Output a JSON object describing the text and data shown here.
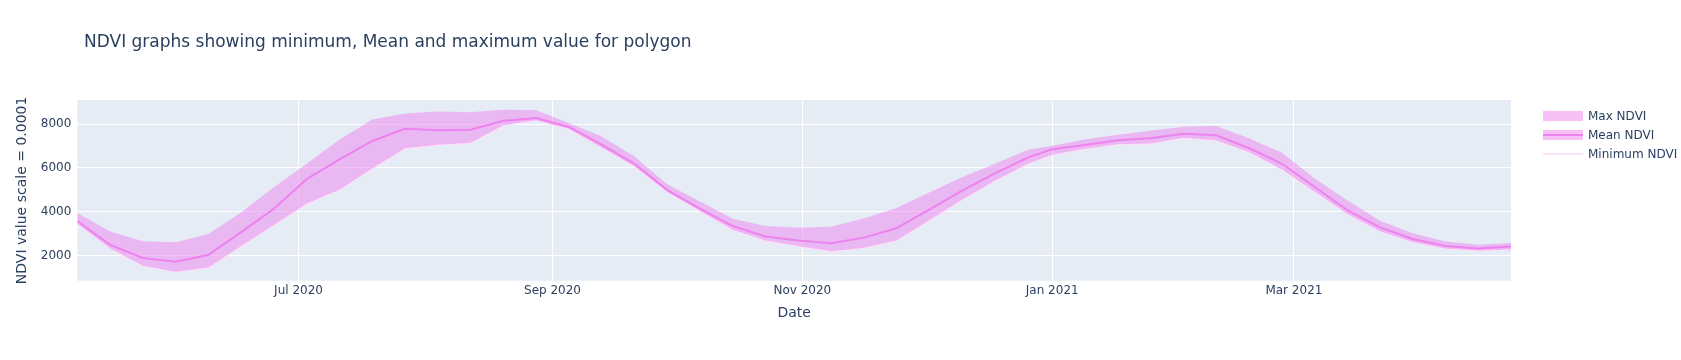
{
  "chart_data": {
    "type": "line",
    "title": "NDVI graphs showing minimum, Mean and maximum value for polygon",
    "xlabel": "Date",
    "ylabel": "NDVI value scale = 0.0001",
    "x": [
      "2020-05-08",
      "2020-05-16",
      "2020-05-24",
      "2020-06-01",
      "2020-06-09",
      "2020-06-17",
      "2020-06-25",
      "2020-07-03",
      "2020-07-11",
      "2020-07-19",
      "2020-07-27",
      "2020-08-04",
      "2020-08-12",
      "2020-08-20",
      "2020-08-28",
      "2020-09-05",
      "2020-09-13",
      "2020-09-21",
      "2020-09-29",
      "2020-10-07",
      "2020-10-15",
      "2020-10-23",
      "2020-10-31",
      "2020-11-08",
      "2020-11-16",
      "2020-11-24",
      "2020-12-02",
      "2020-12-10",
      "2020-12-18",
      "2020-12-26",
      "2021-01-01",
      "2021-01-09",
      "2021-01-17",
      "2021-01-25",
      "2021-02-02",
      "2021-02-10",
      "2021-02-18",
      "2021-02-26",
      "2021-03-06",
      "2021-03-14",
      "2021-03-22",
      "2021-03-30",
      "2021-04-07",
      "2021-04-15",
      "2021-04-23"
    ],
    "series": [
      {
        "name": "Max NDVI",
        "type": "area",
        "color": "#ee82ee",
        "values": [
          3940,
          3100,
          2660,
          2610,
          2990,
          3970,
          5120,
          6190,
          7290,
          8210,
          8480,
          8580,
          8540,
          8660,
          8630,
          8050,
          7430,
          6520,
          5260,
          4470,
          3680,
          3350,
          3270,
          3320,
          3690,
          4170,
          4880,
          5580,
          6190,
          6820,
          7010,
          7300,
          7520,
          7700,
          7880,
          7910,
          7350,
          6700,
          5530,
          4520,
          3590,
          3020,
          2640,
          2490,
          2570
        ]
      },
      {
        "name": "Mean NDVI",
        "type": "line",
        "color": "#ee82ee",
        "values": [
          3580,
          2490,
          1890,
          1720,
          2030,
          3070,
          4140,
          5490,
          6390,
          7230,
          7790,
          7720,
          7740,
          8150,
          8280,
          7870,
          7060,
          6190,
          4990,
          4140,
          3350,
          2870,
          2690,
          2560,
          2820,
          3250,
          4100,
          4960,
          5750,
          6470,
          6850,
          7050,
          7260,
          7350,
          7560,
          7490,
          6910,
          6200,
          5140,
          4080,
          3290,
          2760,
          2440,
          2320,
          2410
        ]
      },
      {
        "name": "Minimum NDVI",
        "type": "line",
        "color": "#fbe3fb",
        "values": [
          3450,
          2330,
          1540,
          1260,
          1460,
          2440,
          3400,
          4380,
          5010,
          5980,
          6900,
          7060,
          7150,
          7950,
          8180,
          7790,
          6930,
          6080,
          4910,
          4040,
          3180,
          2690,
          2440,
          2200,
          2360,
          2690,
          3610,
          4550,
          5420,
          6190,
          6600,
          6880,
          7080,
          7120,
          7380,
          7260,
          6730,
          5940,
          4930,
          3910,
          3110,
          2620,
          2320,
          2230,
          2280
        ]
      }
    ],
    "xlim": [
      "2020-05-08",
      "2021-04-23"
    ],
    "xticks": [
      {
        "value": "2020-07-01",
        "label": "Jul 2020"
      },
      {
        "value": "2020-09-01",
        "label": "Sep 2020"
      },
      {
        "value": "2020-11-01",
        "label": "Nov 2020"
      },
      {
        "value": "2021-01-01",
        "label": "Jan 2021"
      },
      {
        "value": "2021-03-01",
        "label": "Mar 2021"
      }
    ],
    "ylim": [
      850,
      9100
    ],
    "yticks": [
      2000,
      4000,
      6000,
      8000
    ],
    "grid": true,
    "legend": "top right",
    "marker": "none",
    "line_style": "solid"
  }
}
